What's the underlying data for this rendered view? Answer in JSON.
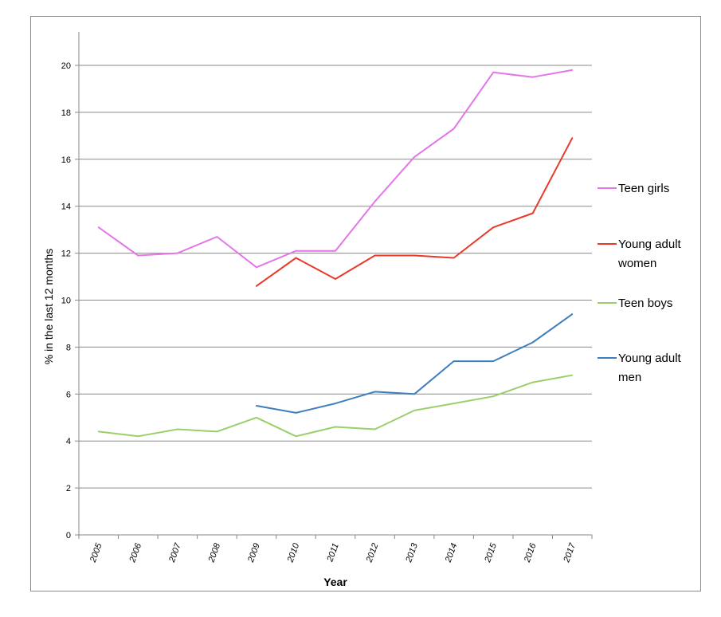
{
  "chart_data": {
    "type": "line",
    "ylabel": "% in the last 12 months",
    "xlabel": "Year",
    "ylim": [
      0,
      20
    ],
    "yticks": [
      0,
      2,
      4,
      6,
      8,
      10,
      12,
      14,
      16,
      18,
      20
    ],
    "grid": "horizontal",
    "legend_position": "right",
    "categories": [
      "2005",
      "2006",
      "2007",
      "2008",
      "2009",
      "2010",
      "2011",
      "2012",
      "2013",
      "2014",
      "2015",
      "2016",
      "2017"
    ],
    "series": [
      {
        "name": "Teen girls",
        "color": "#e377e8",
        "values": [
          13.1,
          11.9,
          12.0,
          12.7,
          11.4,
          12.1,
          12.1,
          14.2,
          16.1,
          17.3,
          19.7,
          19.5,
          19.8
        ]
      },
      {
        "name": "Young adult women",
        "color": "#e8392b",
        "values": [
          null,
          null,
          null,
          null,
          10.6,
          11.8,
          10.9,
          11.9,
          11.9,
          11.8,
          13.1,
          13.7,
          16.9
        ]
      },
      {
        "name": "Teen boys",
        "color": "#9bcf6b",
        "values": [
          4.4,
          4.2,
          4.5,
          4.4,
          5.0,
          4.2,
          4.6,
          4.5,
          5.3,
          5.6,
          5.9,
          6.5,
          6.8
        ]
      },
      {
        "name": "Young adult men",
        "color": "#3e7ebf",
        "values": [
          null,
          null,
          null,
          null,
          5.5,
          5.2,
          5.6,
          6.1,
          6.0,
          7.4,
          7.4,
          8.2,
          9.4
        ]
      }
    ],
    "legend": [
      {
        "lines": [
          "Teen girls"
        ],
        "color": "#e377e8"
      },
      {
        "lines": [
          "Young adult",
          "women"
        ],
        "color": "#e8392b"
      },
      {
        "lines": [
          "Teen boys"
        ],
        "color": "#9bcf6b"
      },
      {
        "lines": [
          "Young adult",
          "men"
        ],
        "color": "#3e7ebf"
      }
    ]
  }
}
